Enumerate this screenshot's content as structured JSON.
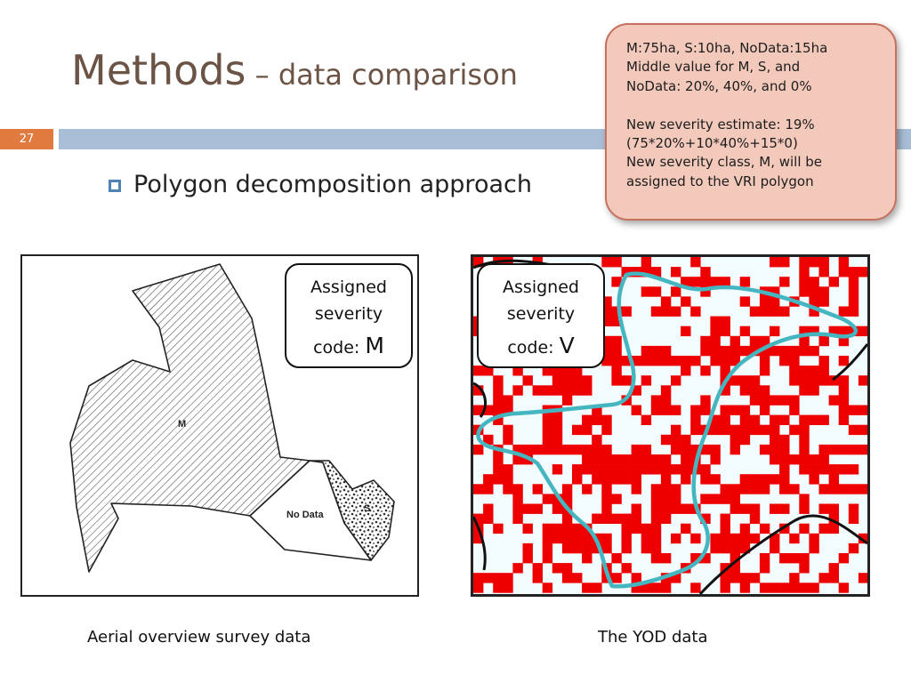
{
  "slide": {
    "number": "27",
    "title_main": "Methods",
    "title_sep": " – ",
    "title_sub": "data comparison",
    "bullet": "Polygon decomposition approach"
  },
  "callout": {
    "lines": [
      "M:75ha, S:10ha, NoData:15ha",
      "Middle value for M, S, and",
      "NoData: 20%, 40%, and 0%"
    ],
    "lines2": [
      "New severity estimate: 19%",
      "(75*20%+10*40%+15*0)",
      "New severity class, M, will be",
      "assigned to the VRI polygon"
    ]
  },
  "left_panel": {
    "box": {
      "line1": "Assigned",
      "line2": "severity",
      "code_label": "code: ",
      "code": "M"
    },
    "map_labels": {
      "m": "M",
      "no_data": "No Data",
      "s": "S"
    },
    "caption": "Aerial overview survey data"
  },
  "right_panel": {
    "box": {
      "line1": "Assigned",
      "line2": "severity",
      "code_label": "code: ",
      "code": "V"
    },
    "caption": "The YOD data",
    "colors": {
      "disturbed": "#ee0000",
      "undisturbed": "#f2fbfe",
      "polygon": "#45b6c0",
      "boundary": "#111111"
    }
  },
  "colors": {
    "title": "#6b5346",
    "accent_bar": "#a7bed6",
    "slide_number_bg": "#e07a3e",
    "callout_bg": "#f2c9ba",
    "callout_border": "#c8705e"
  }
}
